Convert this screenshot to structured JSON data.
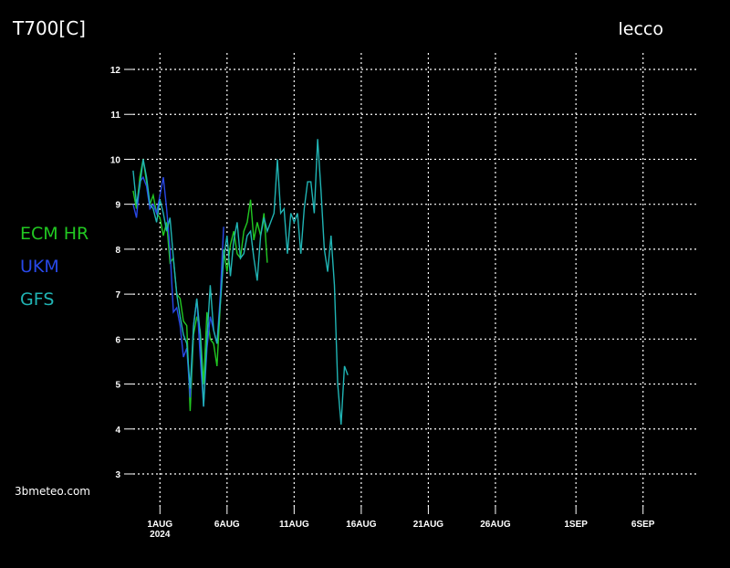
{
  "chart_data": {
    "type": "line",
    "title": "T700[C]",
    "location": "lecco",
    "watermark": "3bmeteo.com",
    "year_label": "2024",
    "x": [
      -1,
      -0.75,
      -0.5,
      -0.25,
      0,
      0.25,
      0.5,
      0.75,
      1,
      1.25,
      1.5,
      1.75,
      2,
      2.25,
      2.5,
      2.75,
      3,
      3.25,
      3.5,
      3.75,
      4,
      4.25,
      4.5,
      4.75,
      5,
      5.25,
      5.5,
      5.75,
      6,
      6.25,
      6.5,
      6.75,
      7,
      7.25,
      7.5,
      7.75,
      8,
      8.25,
      8.5,
      8.75,
      9,
      9.25,
      9.5,
      9.75,
      10,
      10.25,
      10.5,
      10.75,
      11,
      11.25,
      11.5,
      11.75,
      12,
      12.25,
      12.5,
      12.75,
      13,
      13.25,
      13.5,
      13.75,
      14,
      14.25,
      14.5,
      14.75,
      15
    ],
    "series": [
      {
        "name": "ECM HR",
        "color": "#22c822",
        "values": [
          9.3,
          8.9,
          9.6,
          10.0,
          9.5,
          9.0,
          9.2,
          8.8,
          8.7,
          8.3,
          8.6,
          7.7,
          7.8,
          7.0,
          6.9,
          6.4,
          6.3,
          4.4,
          6.1,
          6.5,
          6.2,
          5.0,
          6.6,
          6.0,
          5.9,
          5.4,
          6.8,
          8.0,
          7.5,
          8.1,
          8.4,
          7.9,
          7.8,
          8.4,
          8.6,
          9.1,
          8.2,
          8.6,
          8.3,
          8.8,
          7.7,
          null,
          null,
          null,
          null,
          null,
          null,
          null,
          null,
          null,
          null,
          null,
          null,
          null,
          null,
          null,
          null,
          null,
          null,
          null,
          null,
          null,
          null,
          null,
          null
        ]
      },
      {
        "name": "UKM",
        "color": "#2848e8",
        "values": [
          9.0,
          8.7,
          9.5,
          9.6,
          9.4,
          8.9,
          9.0,
          8.8,
          9.2,
          9.6,
          8.9,
          8.0,
          6.6,
          6.7,
          6.3,
          5.6,
          5.8,
          4.7,
          6.3,
          6.9,
          5.6,
          4.5,
          5.8,
          6.5,
          6.2,
          5.9,
          7.0,
          8.5,
          null,
          null,
          null,
          null,
          null,
          null,
          null,
          null,
          null,
          null,
          null,
          null,
          null,
          null,
          null,
          null,
          null,
          null,
          null,
          null,
          null,
          null,
          null,
          null,
          null,
          null,
          null,
          null,
          null,
          null,
          null,
          null,
          null,
          null,
          null,
          null,
          null
        ]
      },
      {
        "name": "GFS",
        "color": "#20b4b4",
        "values": [
          9.75,
          9.0,
          9.4,
          10.0,
          9.6,
          9.0,
          8.9,
          8.6,
          9.1,
          8.8,
          8.4,
          8.7,
          7.8,
          7.0,
          6.5,
          6.1,
          5.9,
          4.9,
          6.3,
          6.9,
          6.1,
          4.5,
          6.0,
          7.2,
          6.2,
          5.9,
          6.8,
          7.8,
          8.3,
          7.4,
          8.2,
          8.6,
          7.8,
          7.9,
          8.3,
          8.4,
          7.8,
          7.3,
          8.3,
          8.7,
          8.4,
          8.6,
          8.8,
          10.0,
          8.8,
          8.9,
          7.9,
          8.8,
          8.6,
          8.8,
          7.9,
          8.9,
          9.5,
          9.5,
          8.8,
          10.45,
          9.3,
          8.0,
          7.5,
          8.3,
          7.2,
          5.0,
          4.1,
          5.4,
          5.2
        ]
      }
    ],
    "xlim": [
      -1.4,
      41.1
    ],
    "xticks": [
      {
        "value": 1,
        "label": "1AUG"
      },
      {
        "value": 6,
        "label": "6AUG"
      },
      {
        "value": 11,
        "label": "11AUG"
      },
      {
        "value": 16,
        "label": "16AUG"
      },
      {
        "value": 21,
        "label": "21AUG"
      },
      {
        "value": 26,
        "label": "26AUG"
      },
      {
        "value": 32,
        "label": "1SEP"
      },
      {
        "value": 37,
        "label": "6SEP"
      }
    ],
    "ylim": [
      3,
      12
    ],
    "yticks": [
      3,
      4,
      5,
      6,
      7,
      8,
      9,
      10,
      11,
      12
    ],
    "grid": true
  }
}
